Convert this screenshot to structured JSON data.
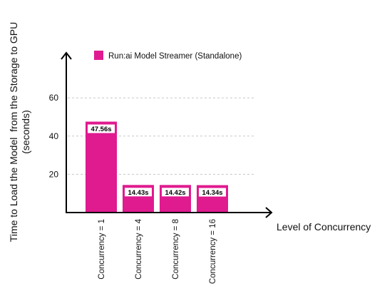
{
  "chart_data": {
    "type": "bar",
    "categories": [
      "Concurrency = 1",
      "Concurrency = 4",
      "Concurrency = 8",
      "Concurrency = 16"
    ],
    "series": [
      {
        "name": "Run:ai Model Streamer (Standalone)",
        "values": [
          47.56,
          14.43,
          14.42,
          14.34
        ],
        "data_labels": [
          "47.56s",
          "14.43s",
          "14.42s",
          "14.34s"
        ],
        "color": "#e01a8f"
      }
    ],
    "xlabel": "Level of Concurrency",
    "ylabel_lines": [
      "Time to Load the Model  from the Storage to GPU",
      "(seconds)"
    ],
    "yticks": [
      20,
      40,
      60
    ],
    "ylim": [
      0,
      70
    ],
    "grid": "horizontal dashed",
    "legend_position": "top"
  }
}
